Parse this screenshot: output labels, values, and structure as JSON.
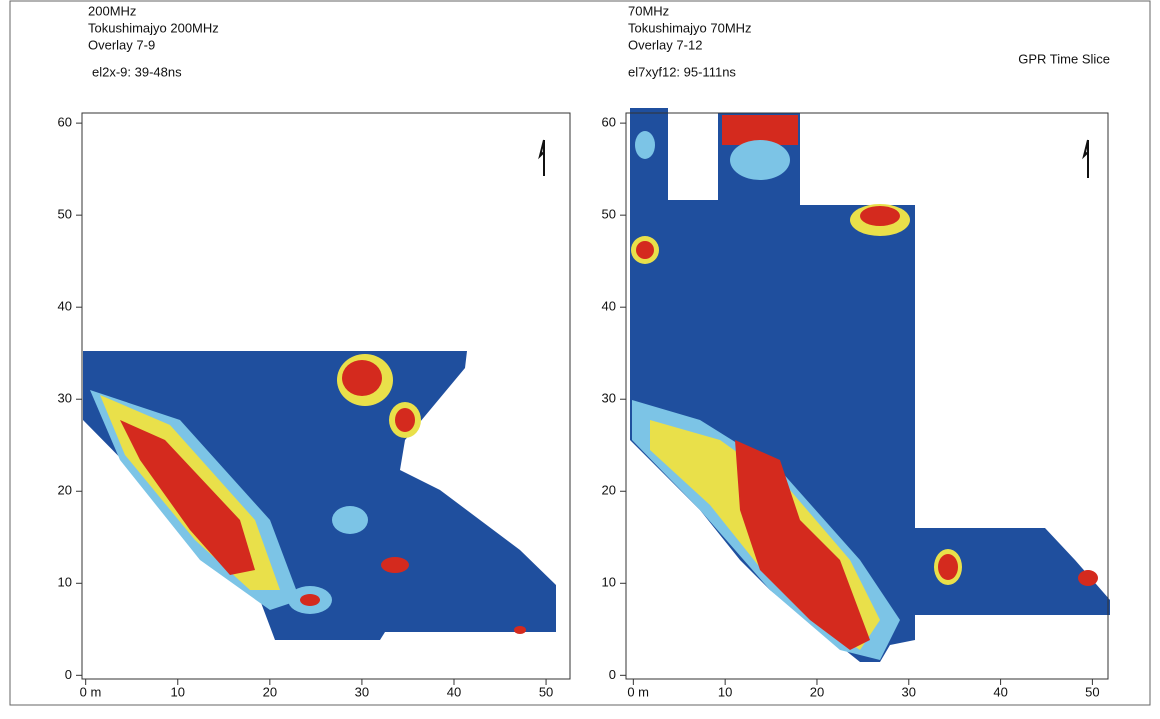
{
  "chart_data": [
    {
      "type": "heatmap",
      "title": "200MHz",
      "subtitle": "Tokushimajyo 200MHz",
      "overlay": "Overlay 7-9",
      "slice": "el2x-9: 39-48ns",
      "xlim": [
        -0.4,
        52.6
      ],
      "ylim": [
        -0.4,
        61.1
      ],
      "xticks": [
        {
          "value": 0,
          "label": "0 m"
        },
        10,
        20,
        30,
        40,
        50
      ],
      "yticks": [
        0,
        10,
        20,
        30,
        40,
        50,
        60
      ]
    },
    {
      "type": "heatmap",
      "title": "70MHz",
      "subtitle": "Tokushimajyo 70MHz",
      "overlay": "Overlay 7-12",
      "slice": "el7xyf12: 95-111ns",
      "annotation": "GPR Time Slice",
      "xlim": [
        -0.8,
        51.7
      ],
      "ylim": [
        -0.4,
        61.1
      ],
      "xticks": [
        {
          "value": 0,
          "label": "0 m"
        },
        10,
        20,
        30,
        40,
        50
      ],
      "yticks": [
        0,
        10,
        20,
        30,
        40,
        50,
        60
      ]
    }
  ]
}
